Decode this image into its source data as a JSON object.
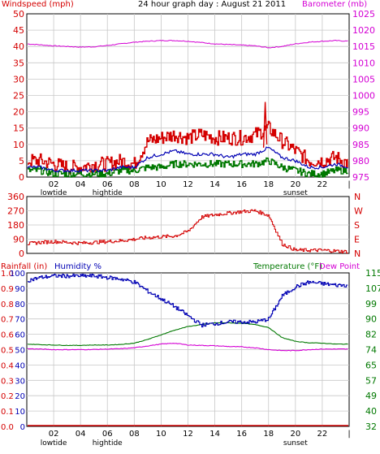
{
  "header": {
    "left": "Windspeed (mph)",
    "center": "24 hour graph day : August 21 2011",
    "right": "Barometer (mb)"
  },
  "colors": {
    "wind": "#d40000",
    "gust": "#d40000",
    "avg_wind": "#0000b4",
    "green": "#007800",
    "baro": "#d400d4",
    "dir": "#d40000",
    "humidity": "#0000b4",
    "temp": "#007800",
    "dew": "#d400d4",
    "rain": "#d40000"
  },
  "chart_data": [
    {
      "id": "wind_baro",
      "type": "line",
      "title": "24 hour graph day : August 21 2011",
      "ylabel_left": "Windspeed (mph)",
      "ylabel_right": "Barometer (mb)",
      "ylim_left": [
        0,
        50
      ],
      "ylim_right": [
        975,
        1025
      ],
      "yticks_left": [
        "0",
        "5",
        "10",
        "15",
        "20",
        "25",
        "30",
        "35",
        "40",
        "45",
        "50"
      ],
      "yticks_right": [
        "975",
        "980",
        "985",
        "990",
        "995",
        "1000",
        "1005",
        "1010",
        "1015",
        "1020",
        "1025"
      ],
      "x_hours": [
        0,
        1,
        2,
        3,
        4,
        5,
        6,
        7,
        8,
        9,
        10,
        11,
        12,
        13,
        14,
        15,
        16,
        17,
        18,
        19,
        20,
        21,
        22,
        23,
        24
      ],
      "series": [
        {
          "key": "gust",
          "axis": "left",
          "values": [
            5,
            5,
            4,
            3,
            3,
            4,
            4,
            5,
            4,
            11,
            12,
            13,
            12,
            13,
            12,
            12,
            12,
            13,
            15,
            11,
            8,
            5,
            5,
            6,
            4
          ]
        },
        {
          "key": "avg_wind",
          "axis": "left",
          "values": [
            3,
            3,
            2,
            2,
            2,
            2,
            2,
            3,
            3,
            6,
            7,
            8,
            7,
            7,
            7,
            6,
            7,
            7,
            9,
            6,
            5,
            3,
            3,
            4,
            3
          ]
        },
        {
          "key": "green",
          "axis": "left",
          "values": [
            2,
            2,
            1,
            1,
            1,
            1,
            1,
            2,
            2,
            3,
            3,
            4,
            4,
            4,
            4,
            4,
            4,
            4,
            5,
            3,
            2,
            1,
            1,
            2,
            2
          ]
        },
        {
          "key": "baro",
          "axis": "right",
          "values": [
            1015.8,
            1015.5,
            1015.2,
            1015.0,
            1014.8,
            1014.9,
            1015.3,
            1015.8,
            1016.3,
            1016.6,
            1016.8,
            1016.8,
            1016.6,
            1016.2,
            1015.8,
            1015.6,
            1015.4,
            1015.2,
            1014.6,
            1015.0,
            1015.8,
            1016.3,
            1016.6,
            1016.8,
            1016.6
          ]
        }
      ],
      "spike": {
        "hour": 17.75,
        "value": 23
      }
    },
    {
      "id": "direction",
      "type": "line",
      "yticks_left": [
        "0",
        "90",
        "180",
        "270",
        "360"
      ],
      "ylim": [
        0,
        360
      ],
      "compass_labels": [
        "N",
        "W",
        "S",
        "E",
        "N"
      ],
      "x_hours": [
        0,
        1,
        2,
        3,
        4,
        5,
        6,
        7,
        8,
        9,
        10,
        11,
        12,
        13,
        14,
        15,
        16,
        17,
        18,
        19,
        20,
        21,
        22,
        23,
        24
      ],
      "series": [
        {
          "key": "dir",
          "values": [
            60,
            70,
            75,
            70,
            65,
            70,
            75,
            80,
            90,
            100,
            105,
            110,
            140,
            230,
            245,
            255,
            265,
            270,
            240,
            60,
            20,
            20,
            20,
            15,
            10
          ]
        }
      ]
    },
    {
      "id": "temp_hum",
      "type": "line",
      "ylabel_left": "Rainfall (in)",
      "ylabel_left2": "Humidity %",
      "ylabel_right": "Temperature (°F)",
      "ylabel_right2": "Dew Point",
      "yticks_left": [
        "0.0",
        "0.1",
        "0.2",
        "0.3",
        "0.4",
        "0.5",
        "0.6",
        "0.7",
        "0.8",
        "0.9",
        "1.0"
      ],
      "yticks_hum": [
        "0",
        "10",
        "20",
        "30",
        "40",
        "50",
        "60",
        "70",
        "80",
        "90",
        "100"
      ],
      "yticks_right": [
        "32",
        "40",
        "49",
        "57",
        "65",
        "74",
        "82",
        "90",
        "99",
        "107",
        "115"
      ],
      "ylim_humidity": [
        0,
        100
      ],
      "ylim_temp": [
        32,
        115
      ],
      "x_hours": [
        0,
        1,
        2,
        3,
        4,
        5,
        6,
        7,
        8,
        9,
        10,
        11,
        12,
        13,
        14,
        15,
        16,
        17,
        18,
        19,
        20,
        21,
        22,
        23,
        24
      ],
      "series": [
        {
          "key": "humidity",
          "axis": "hum",
          "values": [
            95,
            97,
            98,
            98,
            98,
            98,
            97,
            96,
            94,
            88,
            83,
            78,
            72,
            66,
            67,
            68,
            68,
            68,
            70,
            85,
            91,
            94,
            93,
            92,
            92
          ]
        },
        {
          "key": "temp",
          "axis": "temp",
          "values": [
            76.5,
            76.2,
            76.0,
            75.8,
            75.8,
            76.0,
            76.0,
            76.3,
            77.0,
            79.0,
            81.5,
            84.0,
            86.0,
            87.0,
            88.0,
            88.0,
            87.8,
            87.0,
            85.5,
            80.0,
            78.0,
            77.2,
            77.0,
            76.5,
            76.5
          ]
        },
        {
          "key": "dew",
          "axis": "temp",
          "values": [
            74.0,
            73.8,
            73.5,
            73.5,
            73.5,
            73.6,
            73.8,
            74.0,
            74.5,
            75.5,
            76.5,
            77.0,
            76.0,
            75.8,
            75.6,
            75.2,
            75.0,
            74.5,
            73.5,
            73.0,
            73.0,
            73.5,
            73.8,
            73.8,
            73.8
          ]
        },
        {
          "key": "rain",
          "axis": "hum",
          "values": [
            0,
            0,
            0,
            0,
            0,
            0,
            0,
            0,
            0,
            0,
            0,
            0,
            0,
            0,
            0,
            0,
            0,
            0,
            0,
            0,
            0,
            0,
            0,
            0,
            0
          ]
        }
      ]
    }
  ],
  "labels": {
    "rain": "Rainfall (in)",
    "humidity": "Humidity %",
    "temperature": "Temperature (°F)",
    "dewpoint": "Dew Point"
  },
  "x_axis": {
    "ticks": [
      "02",
      "04",
      "06",
      "08",
      "10",
      "12",
      "14",
      "16",
      "18",
      "20",
      "22",
      "|"
    ],
    "tick_hours": [
      2,
      4,
      6,
      8,
      10,
      12,
      14,
      16,
      18,
      20,
      22,
      24
    ],
    "events": [
      {
        "label": "lowtide",
        "hour": 2
      },
      {
        "label": "hightide",
        "hour": 6
      },
      {
        "label": "sunset",
        "hour": 20
      }
    ]
  }
}
